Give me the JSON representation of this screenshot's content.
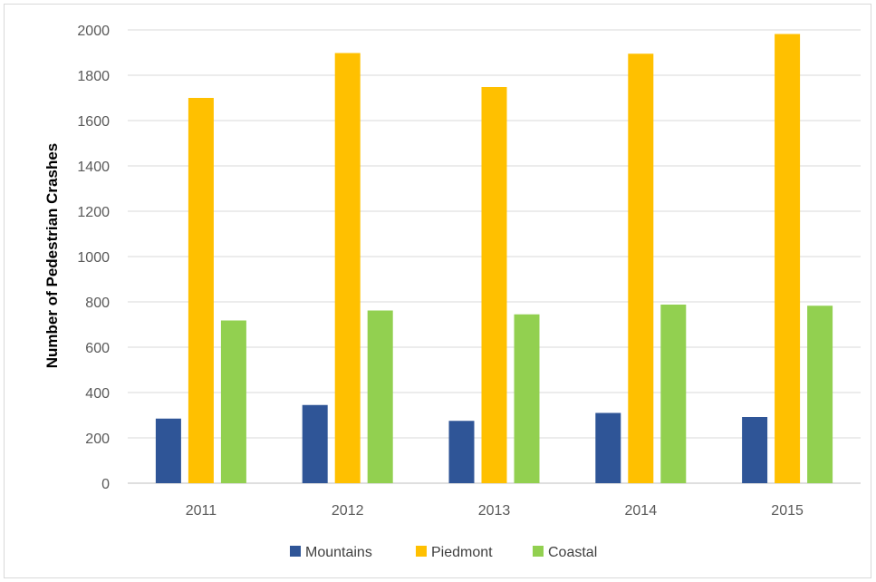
{
  "chart_data": {
    "type": "bar",
    "title": "",
    "xlabel": "",
    "ylabel": "Number of Pedestrian Crashes",
    "ylim": [
      0,
      2000
    ],
    "yticks": [
      0,
      200,
      400,
      600,
      800,
      1000,
      1200,
      1400,
      1600,
      1800,
      2000
    ],
    "categories": [
      "2011",
      "2012",
      "2013",
      "2014",
      "2015"
    ],
    "series": [
      {
        "name": "Mountains",
        "color": "#2f5597",
        "values": [
          285,
          345,
          275,
          310,
          292
        ]
      },
      {
        "name": "Piedmont",
        "color": "#ffc000",
        "values": [
          1700,
          1898,
          1748,
          1895,
          1982
        ]
      },
      {
        "name": "Coastal",
        "color": "#92d050",
        "values": [
          718,
          762,
          745,
          788,
          783
        ]
      }
    ],
    "grid": true,
    "legend_position": "bottom"
  }
}
